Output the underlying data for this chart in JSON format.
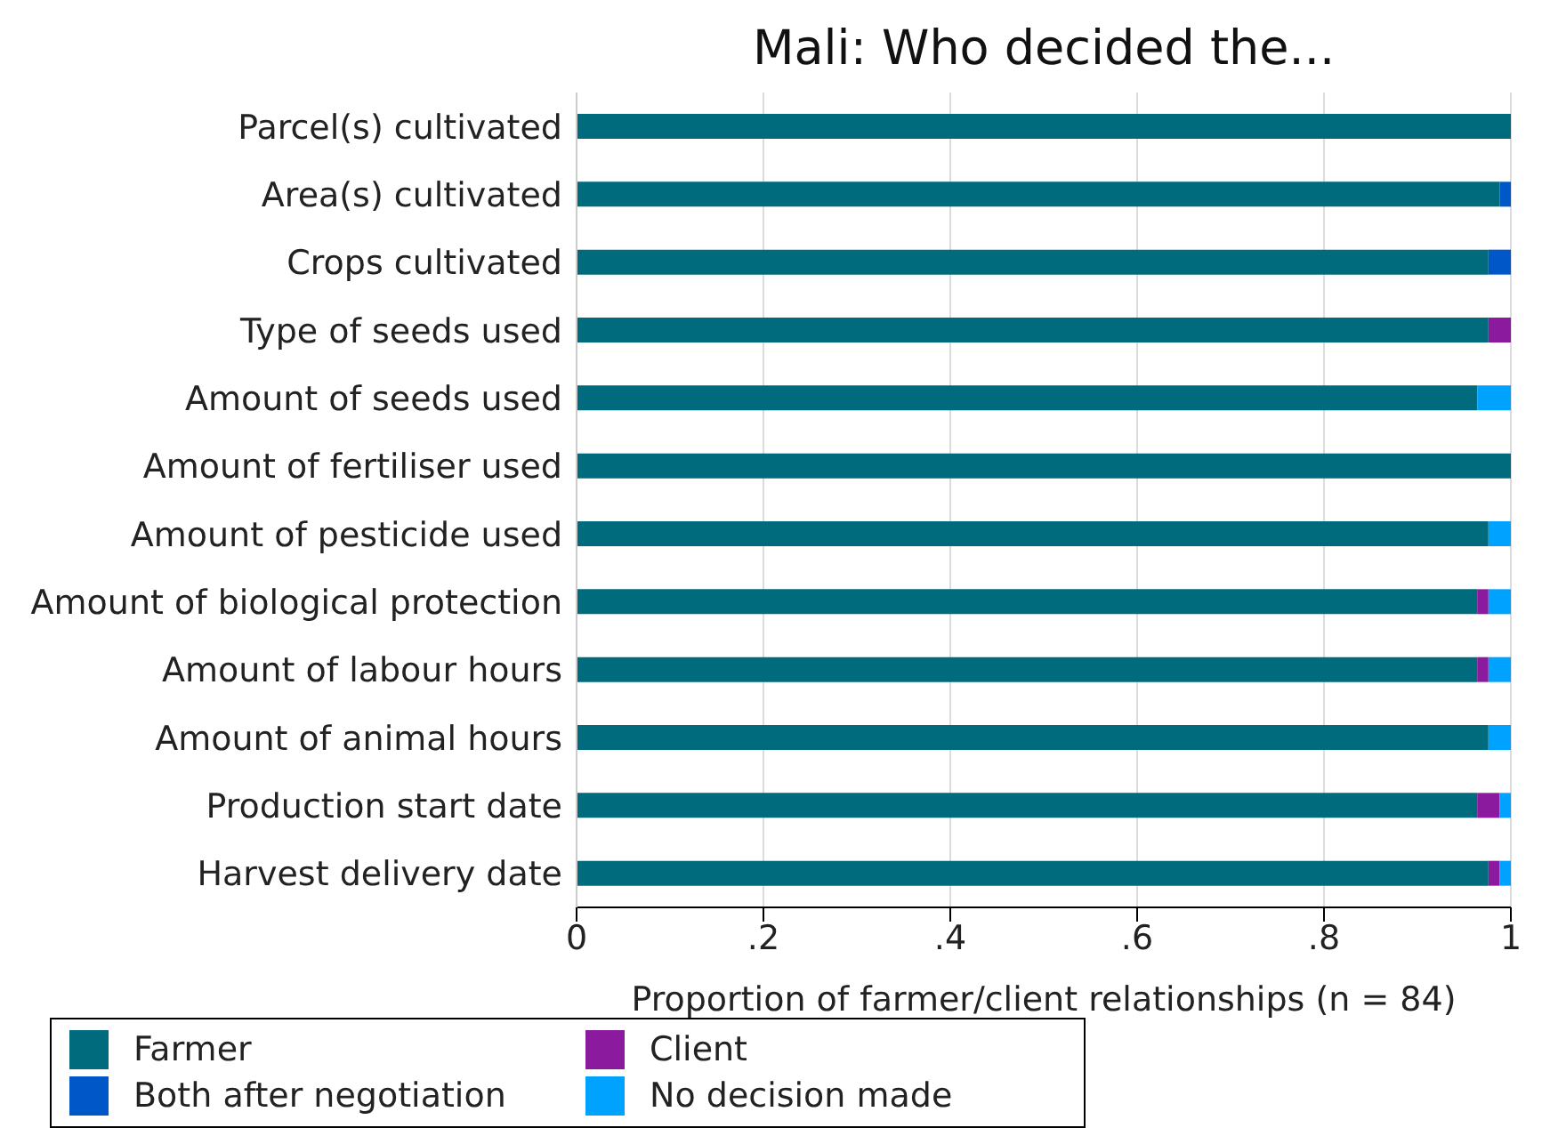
{
  "chart_data": {
    "type": "bar",
    "orientation": "horizontal",
    "stacked": true,
    "title": "Mali: Who decided the...",
    "xlabel": "Proportion of farmer/client relationships (n = 84)",
    "categories": [
      "Parcel(s) cultivated",
      "Area(s) cultivated",
      "Crops cultivated",
      "Type of seeds used",
      "Amount of seeds used",
      "Amount of fertiliser used",
      "Amount of pesticide used",
      "Amount of biological protection",
      "Amount of labour hours",
      "Amount of animal hours",
      "Production start date",
      "Harvest delivery date"
    ],
    "series": [
      {
        "name": "Farmer",
        "color": "#006b7d",
        "values": [
          1,
          0.988,
          0.976,
          0.976,
          0.964,
          1,
          0.976,
          0.964,
          0.964,
          0.976,
          0.964,
          0.976
        ]
      },
      {
        "name": "Client",
        "color": "#8b1a9e",
        "values": [
          0,
          0,
          0,
          0.024,
          0,
          0,
          0,
          0.012,
          0.012,
          0,
          0.024,
          0.012
        ]
      },
      {
        "name": "Both after negotiation",
        "color": "#0057c8",
        "values": [
          0,
          0.012,
          0.024,
          0,
          0,
          0,
          0,
          0,
          0,
          0,
          0,
          0
        ]
      },
      {
        "name": "No decision made",
        "color": "#00a2ff",
        "values": [
          0,
          0,
          0,
          0,
          0.036,
          0,
          0.024,
          0.024,
          0.024,
          0.024,
          0.012,
          0.012
        ]
      }
    ],
    "xlim": [
      0,
      1
    ],
    "xticks": [
      0,
      {
        "value": 0.2,
        "label": ".2"
      },
      {
        "value": 0.4,
        "label": ".4"
      },
      {
        "value": 0.6,
        "label": ".6"
      },
      {
        "value": 0.8,
        "label": ".8"
      },
      1
    ],
    "grid": "x",
    "legend": "bottom"
  }
}
